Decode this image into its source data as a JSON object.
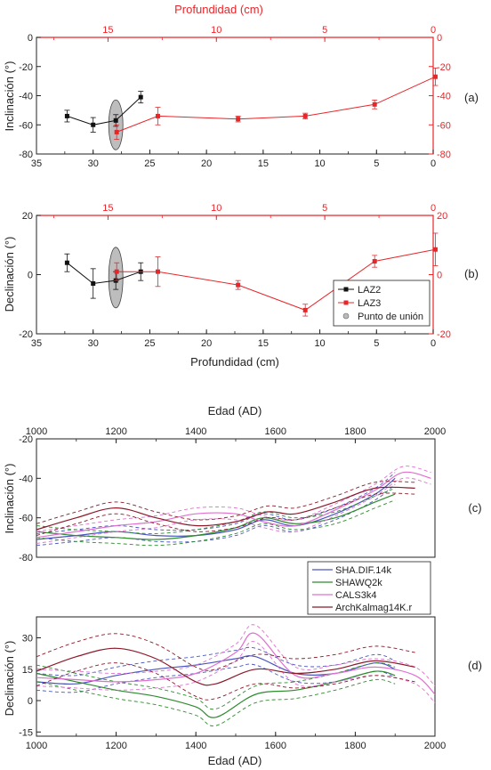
{
  "chart_data": [
    {
      "panel_label": "(a)",
      "type": "line",
      "x_bottom": {
        "ticks": [
          "35",
          "30",
          "25",
          "20",
          "15",
          "10",
          "5",
          "0"
        ],
        "range": [
          35,
          0
        ],
        "label": ""
      },
      "x_top": {
        "label": "Profundidad (cm)",
        "ticks": [
          "15",
          "10",
          "5",
          "0"
        ],
        "range": [
          18.3,
          0
        ]
      },
      "y_left": {
        "label": "Inclinación (°)",
        "ticks": [
          "0",
          "-20",
          "-40",
          "-60",
          "-80"
        ],
        "range": [
          -80,
          0
        ]
      },
      "y_right": {
        "ticks": [
          "0",
          "-20",
          "-40",
          "-60",
          "-80"
        ],
        "range": [
          -80,
          0
        ]
      },
      "series": [
        {
          "name": "LAZ2",
          "color": "#111111",
          "axis": "bottom",
          "x": [
            32.3,
            30.0,
            28.0,
            25.8
          ],
          "y": [
            -54,
            -60,
            -57,
            -41
          ],
          "err": [
            4,
            5,
            4,
            4
          ]
        },
        {
          "name": "LAZ3",
          "color": "#e8262a",
          "axis": "top",
          "x": [
            14.6,
            12.7,
            9.0,
            5.9,
            2.7,
            -0.1
          ],
          "y": [
            -65,
            -54,
            -56,
            -54,
            -46,
            -27
          ],
          "err": [
            5,
            6,
            2,
            2,
            3,
            6
          ]
        }
      ],
      "tie_point": {
        "x": 28.0,
        "y": -60
      }
    },
    {
      "panel_label": "(b)",
      "type": "line",
      "x_bottom": {
        "label": "Profundidad (cm)",
        "ticks": [
          "35",
          "30",
          "25",
          "20",
          "15",
          "10",
          "5",
          "0"
        ],
        "range": [
          35,
          0
        ]
      },
      "x_top": {
        "label": "",
        "ticks": [
          "15",
          "10",
          "5",
          "0"
        ],
        "range": [
          18.3,
          0
        ]
      },
      "y_left": {
        "label": "Declinación (°)",
        "ticks": [
          "20",
          "0",
          "-20"
        ],
        "range": [
          -20,
          20
        ]
      },
      "y_right": {
        "ticks": [
          "20",
          "0",
          "-20"
        ],
        "range": [
          -20,
          20
        ]
      },
      "legend": {
        "position": "bottom-right",
        "entries": [
          "LAZ2",
          "LAZ3",
          "Punto de unión"
        ]
      },
      "series": [
        {
          "name": "LAZ2",
          "color": "#111111",
          "axis": "bottom",
          "x": [
            32.3,
            30.0,
            28.0,
            25.8
          ],
          "y": [
            4,
            -3,
            -2,
            1
          ],
          "err": [
            3,
            5,
            3,
            3
          ]
        },
        {
          "name": "LAZ3",
          "color": "#e8262a",
          "axis": "top",
          "x": [
            14.6,
            12.7,
            9.0,
            5.9,
            2.7,
            -0.1
          ],
          "y": [
            1,
            1,
            -3.5,
            -12,
            4.5,
            8.5
          ],
          "err": [
            3,
            5,
            1.5,
            2,
            2,
            5.5
          ]
        }
      ],
      "tie_point": {
        "x": 28.0,
        "y": -1
      }
    },
    {
      "panel_label": "(c)",
      "type": "line",
      "x_top": {
        "label": "Edad (AD)",
        "ticks": [
          "1000",
          "1200",
          "1400",
          "1600",
          "1800",
          "2000"
        ],
        "range": [
          1000,
          2000
        ]
      },
      "y_left": {
        "label": "Inclinación (°)",
        "ticks": [
          "-20",
          "-40",
          "-60",
          "-80"
        ],
        "range": [
          -80,
          -20
        ]
      },
      "legend": {
        "position": "bottom-right",
        "entries": [
          "SHA.DIF.14k",
          "SHAWQ2k",
          "CALS3k4",
          "ArchKalmag14K.r"
        ]
      },
      "series": [
        {
          "name": "SHA.DIF.14k",
          "color": "#4a56c0",
          "band": 3,
          "x": [
            1000,
            1100,
            1200,
            1300,
            1400,
            1500,
            1570,
            1650,
            1750,
            1850,
            1900
          ],
          "y": [
            -71,
            -69,
            -67,
            -69,
            -69,
            -66,
            -61,
            -64,
            -58,
            -48,
            -40
          ]
        },
        {
          "name": "SHAWQ2k",
          "color": "#2e8b2e",
          "band": 3,
          "x": [
            1000,
            1100,
            1200,
            1300,
            1400,
            1500,
            1570,
            1650,
            1750,
            1850,
            1900
          ],
          "y": [
            -67,
            -69,
            -70,
            -71,
            -69,
            -65,
            -60,
            -63,
            -60,
            -52,
            -48
          ]
        },
        {
          "name": "CALS3k4",
          "color": "#e070d0",
          "band": 3,
          "x": [
            1000,
            1100,
            1200,
            1300,
            1400,
            1500,
            1570,
            1650,
            1750,
            1850,
            1920,
            1990
          ],
          "y": [
            -70,
            -67,
            -64,
            -62,
            -58,
            -58,
            -62,
            -64,
            -56,
            -46,
            -37,
            -40
          ]
        },
        {
          "name": "ArchKalmag14K.r",
          "color": "#8b1a2a",
          "band": 3,
          "x": [
            1000,
            1100,
            1200,
            1300,
            1400,
            1500,
            1580,
            1650,
            1750,
            1850,
            1950
          ],
          "y": [
            -66,
            -60,
            -55,
            -60,
            -64,
            -62,
            -57,
            -58,
            -52,
            -45,
            -45
          ]
        }
      ]
    },
    {
      "panel_label": "(d)",
      "type": "line",
      "x_bottom": {
        "label": "Edad (AD)",
        "ticks": [
          "1000",
          "1200",
          "1400",
          "1600",
          "1800",
          "2000"
        ],
        "range": [
          1000,
          2000
        ]
      },
      "y_left": {
        "label": "Declinación (°)",
        "ticks": [
          "30",
          "15",
          "0",
          "-15"
        ],
        "range": [
          -17,
          40
        ]
      },
      "series": [
        {
          "name": "SHA.DIF.14k",
          "color": "#4a56c0",
          "band": 4,
          "x": [
            1000,
            1100,
            1200,
            1300,
            1400,
            1500,
            1550,
            1650,
            1750,
            1850,
            1900
          ],
          "y": [
            9,
            8,
            12,
            15,
            17,
            20,
            21,
            13,
            13,
            18,
            15
          ]
        },
        {
          "name": "SHAWQ2k",
          "color": "#2e8b2e",
          "band": 4,
          "x": [
            1000,
            1100,
            1200,
            1300,
            1400,
            1450,
            1550,
            1650,
            1750,
            1850,
            1900
          ],
          "y": [
            13,
            9,
            5,
            2,
            -3,
            -8,
            3,
            5,
            9,
            14,
            12
          ]
        },
        {
          "name": "CALS3k4",
          "color": "#e070d0",
          "band": 4,
          "x": [
            1000,
            1100,
            1200,
            1300,
            1400,
            1500,
            1550,
            1650,
            1750,
            1850,
            1950,
            2000
          ],
          "y": [
            11,
            10,
            9,
            10,
            13,
            23,
            32,
            12,
            13,
            16,
            12,
            3
          ]
        },
        {
          "name": "ArchKalmag14K.r",
          "color": "#8b1a2a",
          "band": 7,
          "x": [
            1000,
            1100,
            1200,
            1300,
            1400,
            1450,
            1550,
            1650,
            1750,
            1850,
            1950
          ],
          "y": [
            14,
            21,
            25,
            20,
            9,
            8,
            15,
            13,
            15,
            19,
            16
          ]
        }
      ]
    }
  ]
}
